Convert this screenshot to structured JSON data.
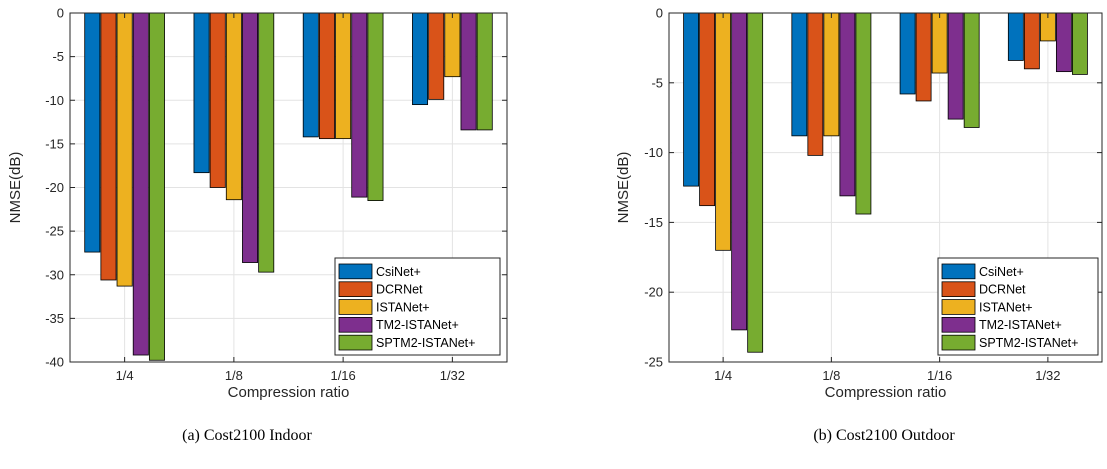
{
  "chart_data": [
    {
      "type": "bar",
      "caption": "(a)  Cost2100 Indoor",
      "categories": [
        "1/4",
        "1/8",
        "1/16",
        "1/32"
      ],
      "xlabel": "Compression ratio",
      "ylabel": "NMSE(dB)",
      "ylim": [
        -40,
        0
      ],
      "yticks": [
        0,
        -5,
        -10,
        -15,
        -20,
        -25,
        -30,
        -35,
        -40
      ],
      "grid": true,
      "legend_position": "bottom-right",
      "series": [
        {
          "name": "CsiNet+",
          "color": "#0072BD",
          "values": [
            -27.4,
            -18.3,
            -14.2,
            -10.5
          ]
        },
        {
          "name": "DCRNet",
          "color": "#D95319",
          "values": [
            -30.6,
            -20.0,
            -14.4,
            -9.9
          ]
        },
        {
          "name": "ISTANet+",
          "color": "#EDB120",
          "values": [
            -31.3,
            -21.4,
            -14.4,
            -7.3
          ]
        },
        {
          "name": "TM2-ISTANet+",
          "color": "#7E2F8E",
          "values": [
            -39.2,
            -28.6,
            -21.1,
            -13.4
          ]
        },
        {
          "name": "SPTM2-ISTANet+",
          "color": "#77AC30",
          "values": [
            -39.8,
            -29.7,
            -21.5,
            -13.4
          ]
        }
      ]
    },
    {
      "type": "bar",
      "caption": "(b)  Cost2100 Outdoor",
      "categories": [
        "1/4",
        "1/8",
        "1/16",
        "1/32"
      ],
      "xlabel": "Compression ratio",
      "ylabel": "NMSE(dB)",
      "ylim": [
        -25,
        0
      ],
      "yticks": [
        0,
        -5,
        -10,
        -15,
        -20,
        -25
      ],
      "grid": true,
      "legend_position": "bottom-right",
      "series": [
        {
          "name": "CsiNet+",
          "color": "#0072BD",
          "values": [
            -12.4,
            -8.8,
            -5.8,
            -3.4
          ]
        },
        {
          "name": "DCRNet",
          "color": "#D95319",
          "values": [
            -13.8,
            -10.2,
            -6.3,
            -4.0
          ]
        },
        {
          "name": "ISTANet+",
          "color": "#EDB120",
          "values": [
            -17.0,
            -8.8,
            -4.3,
            -2.0
          ]
        },
        {
          "name": "TM2-ISTANet+",
          "color": "#7E2F8E",
          "values": [
            -22.7,
            -13.1,
            -7.6,
            -4.2
          ]
        },
        {
          "name": "SPTM2-ISTANet+",
          "color": "#77AC30",
          "values": [
            -24.3,
            -14.4,
            -8.2,
            -4.4
          ]
        }
      ]
    }
  ]
}
